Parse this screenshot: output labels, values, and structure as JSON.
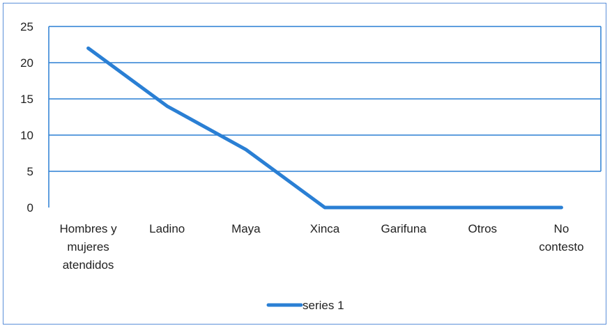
{
  "chart_data": {
    "type": "line",
    "categories": [
      [
        "Hombres y",
        "mujeres",
        "atendidos"
      ],
      [
        "Ladino"
      ],
      [
        "Maya"
      ],
      [
        "Xinca"
      ],
      [
        "Garifuna"
      ],
      [
        "Otros"
      ],
      [
        "No",
        "contesto"
      ]
    ],
    "series": [
      {
        "name": "series 1",
        "values": [
          22,
          14,
          8,
          0,
          0,
          0,
          0
        ],
        "color": "#2a7fd4"
      }
    ],
    "ylim": [
      0,
      25
    ],
    "yticks": [
      0,
      5,
      10,
      15,
      20,
      25
    ],
    "grid": true,
    "grid_color": "#2a7fd4",
    "legend_position": "bottom"
  }
}
